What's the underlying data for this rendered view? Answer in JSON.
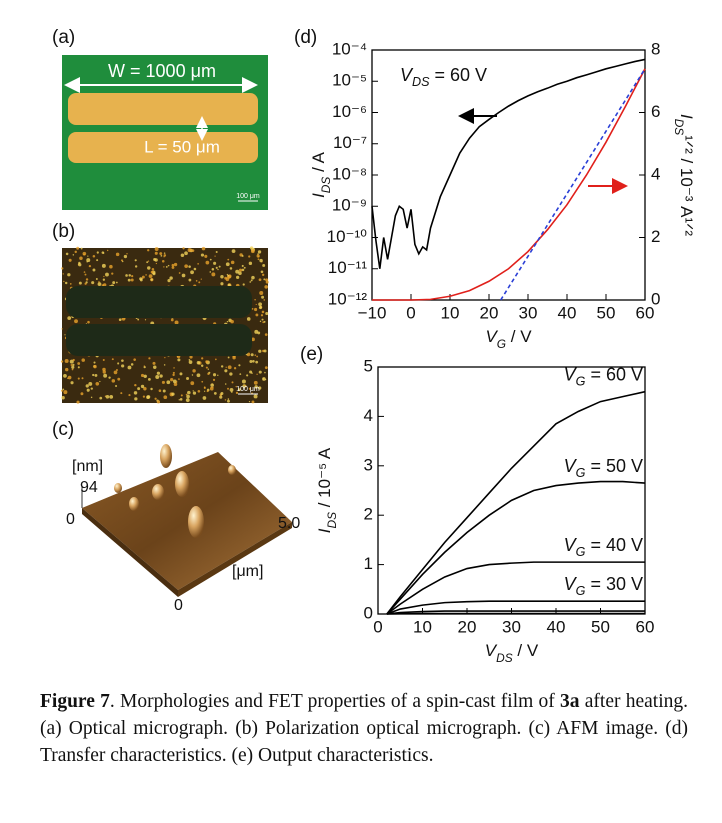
{
  "panels": {
    "a": {
      "label": "(a)",
      "width_label": "W = 1000 μm",
      "length_label": "L = 50 μm",
      "scale_bar": "100 μm"
    },
    "b": {
      "label": "(b)",
      "scale_bar": "100 μm"
    },
    "c": {
      "label": "(c)",
      "z_unit": "[nm]",
      "z_max": "94",
      "z_min": "0",
      "xy_max": "5.0",
      "xy_unit": "[μm]",
      "xy_min": "0"
    }
  },
  "chart_data": [
    {
      "type": "line",
      "title": "(d)",
      "xlabel": [
        "V",
        "G",
        " / V"
      ],
      "ylabel": [
        "I",
        "DS",
        " / A"
      ],
      "y2label": [
        "I",
        "DS",
        "¹ᐟ² / 10⁻³ A¹ᐟ²"
      ],
      "annotation": [
        "V",
        "DS",
        " = 60 V"
      ],
      "xlim": [
        -10,
        60
      ],
      "xticks": [
        {
          "value": -10,
          "label": "−10"
        },
        0,
        10,
        20,
        30,
        40,
        50,
        60
      ],
      "ylim": [
        1e-12,
        0.0001
      ],
      "ylog": true,
      "yticks": [
        {
          "value": 1e-12,
          "label": "10⁻¹²"
        },
        {
          "value": 1e-11,
          "label": "10⁻¹¹"
        },
        {
          "value": 1e-10,
          "label": "10⁻¹⁰"
        },
        {
          "value": 1e-09,
          "label": "10⁻⁹"
        },
        {
          "value": 1e-08,
          "label": "10⁻⁸"
        },
        {
          "value": 1e-07,
          "label": "10⁻⁷"
        },
        {
          "value": 1e-06,
          "label": "10⁻⁶"
        },
        {
          "value": 1e-05,
          "label": "10⁻⁵"
        },
        {
          "value": 0.0001,
          "label": "10⁻⁴"
        }
      ],
      "y2lim": [
        0,
        8
      ],
      "y2ticks": [
        0,
        2,
        4,
        6,
        8
      ],
      "series": [
        {
          "color": "#000000",
          "x": [
            -10,
            -9,
            -8,
            -7,
            -6,
            -5,
            -4,
            -3,
            -2,
            -1,
            0,
            1,
            2,
            3,
            4,
            5,
            7.5,
            10,
            12.5,
            15,
            17.5,
            20,
            22.5,
            25,
            27.5,
            30,
            32.5,
            35,
            37.5,
            40,
            42.5,
            45,
            47.5,
            50,
            52.5,
            55,
            57.5,
            60
          ],
          "values": [
            1e-09,
            8e-11,
            1e-11,
            1e-10,
            2e-11,
            1e-10,
            5e-10,
            1e-09,
            8e-10,
            2e-10,
            8e-10,
            6e-11,
            3e-11,
            5e-11,
            4e-11,
            2e-10,
            2e-09,
            1e-08,
            5e-08,
            1.5e-07,
            3.5e-07,
            6e-07,
            1e-06,
            1.6e-06,
            2.4e-06,
            3.4e-06,
            4.6e-06,
            6e-06,
            8e-06,
            1e-05,
            1.3e-05,
            1.6e-05,
            2e-05,
            2.5e-05,
            3e-05,
            3.6e-05,
            4.3e-05,
            5e-05
          ]
        },
        {
          "color": "#e0201b",
          "axis": "y2",
          "x": [
            -10,
            -5,
            0,
            5,
            10,
            15,
            20,
            25,
            30,
            35,
            40,
            45,
            50,
            55,
            60
          ],
          "values": [
            0,
            0,
            0,
            0.02,
            0.12,
            0.3,
            0.6,
            1.0,
            1.55,
            2.25,
            3.05,
            4.0,
            5.05,
            6.2,
            7.4
          ]
        },
        {
          "color": "#2a3fd6",
          "axis": "y2",
          "dash": true,
          "x": [
            23,
            60
          ],
          "values": [
            0,
            7.4
          ]
        }
      ]
    },
    {
      "type": "line",
      "title": "(e)",
      "xlabel": [
        "V",
        "DS",
        " / V"
      ],
      "ylabel": [
        "I",
        "DS",
        " / 10⁻⁵ A"
      ],
      "xlim": [
        0,
        60
      ],
      "xticks": [
        0,
        10,
        20,
        30,
        40,
        50,
        60
      ],
      "ylim": [
        0,
        5
      ],
      "yticks": [
        0,
        1,
        2,
        3,
        4,
        5
      ],
      "x": [
        2,
        5,
        10,
        15,
        20,
        25,
        30,
        35,
        40,
        45,
        50,
        55,
        60
      ],
      "series": [
        {
          "color": "#000000",
          "label": [
            "V",
            "G",
            " = 60 V"
          ],
          "values": [
            0,
            0.35,
            0.9,
            1.45,
            1.95,
            2.45,
            2.95,
            3.4,
            3.85,
            4.1,
            4.3,
            4.4,
            4.5
          ]
        },
        {
          "color": "#000000",
          "label": [
            "V",
            "G",
            " = 50 V"
          ],
          "values": [
            0,
            0.3,
            0.8,
            1.25,
            1.65,
            2.0,
            2.3,
            2.5,
            2.6,
            2.65,
            2.68,
            2.68,
            2.65
          ]
        },
        {
          "color": "#000000",
          "label": [
            "V",
            "G",
            " = 40 V"
          ],
          "values": [
            0,
            0.2,
            0.5,
            0.75,
            0.92,
            1.0,
            1.03,
            1.05,
            1.05,
            1.05,
            1.05,
            1.05,
            1.05
          ]
        },
        {
          "color": "#000000",
          "label": [
            "V",
            "G",
            " = 30 V"
          ],
          "values": [
            0,
            0.1,
            0.18,
            0.23,
            0.25,
            0.26,
            0.26,
            0.26,
            0.26,
            0.26,
            0.26,
            0.26,
            0.26
          ]
        },
        {
          "color": "#000000",
          "values": [
            0,
            0.03,
            0.05,
            0.06,
            0.06,
            0.06,
            0.06,
            0.06,
            0.06,
            0.06,
            0.06,
            0.06,
            0.06
          ]
        },
        {
          "color": "#000000",
          "values": [
            0,
            0.005,
            0.01,
            0.01,
            0.01,
            0.01,
            0.01,
            0.01,
            0.01,
            0.01,
            0.01,
            0.01,
            0.01
          ]
        }
      ]
    }
  ],
  "caption": [
    "Figure 7",
    ". Morphologies and FET properties of a spin-cast film of ",
    "3a",
    " after heating. (a) Optical micrograph. (b) Polarization optical micrograph. (c) AFM image. (d) Transfer characteristics. (e) Output characteristics."
  ]
}
